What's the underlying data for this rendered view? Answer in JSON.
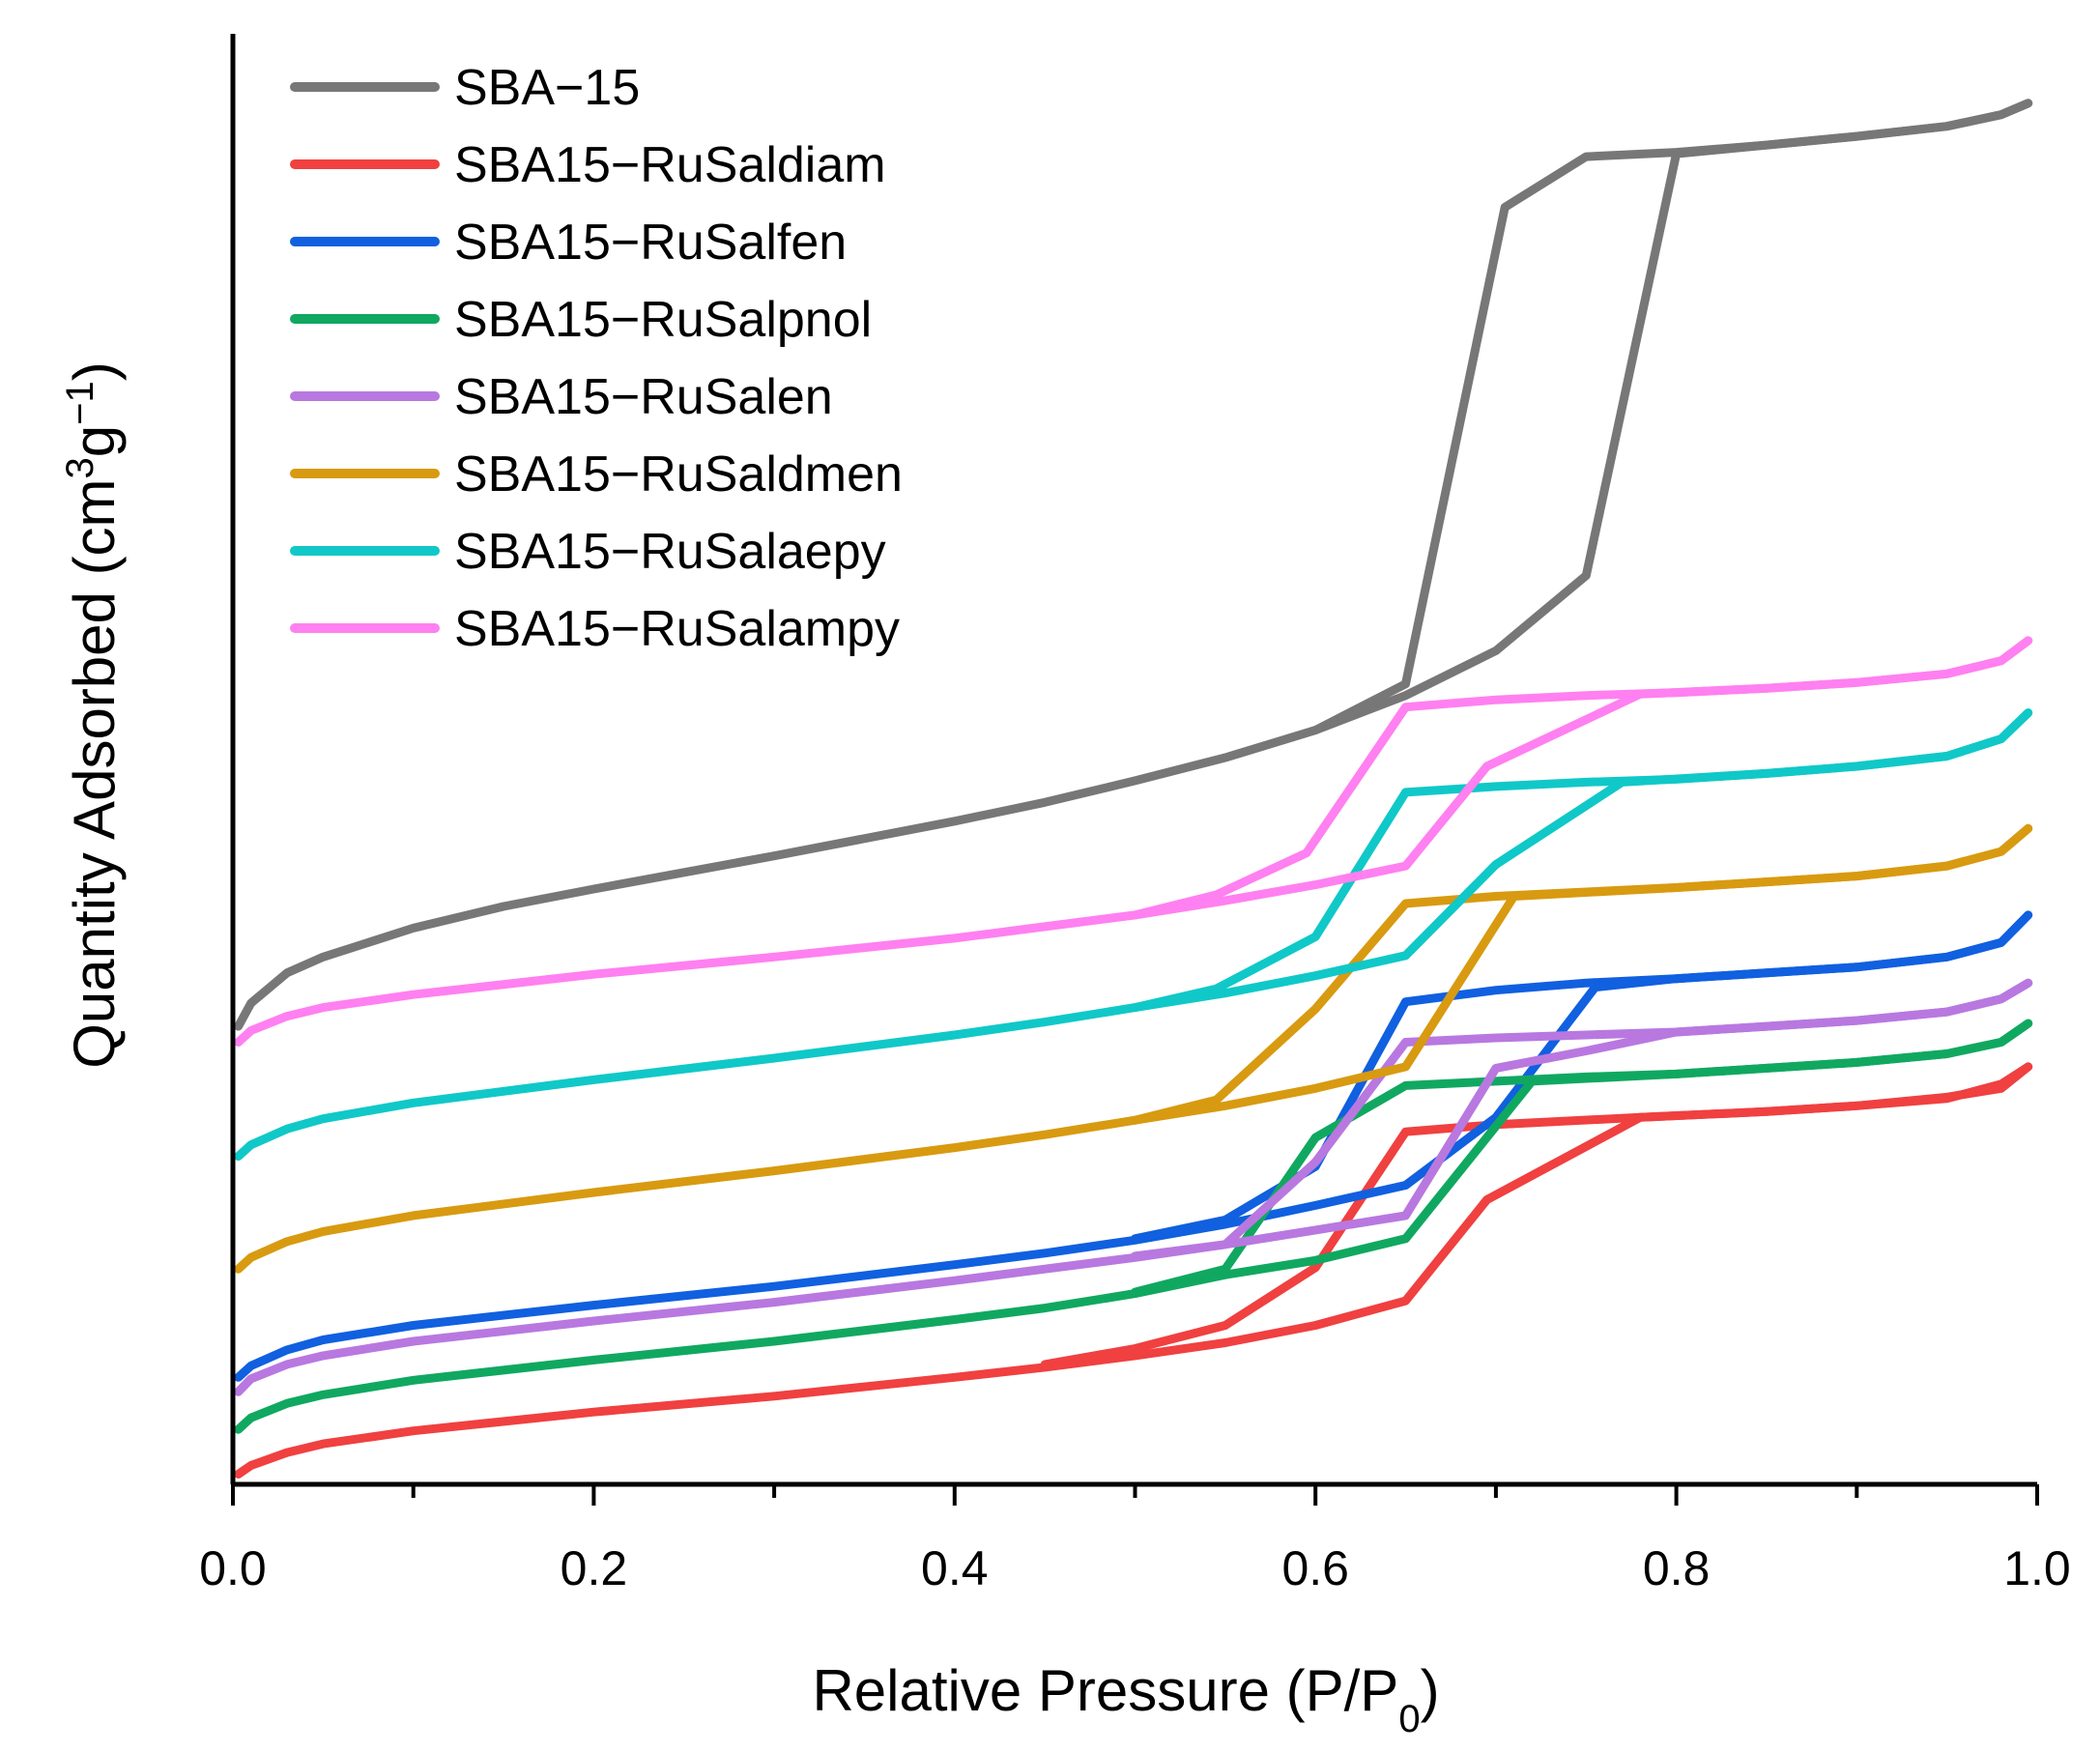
{
  "chart_data": {
    "type": "line",
    "title": "",
    "xlabel": "Relative Pressure (P/P",
    "xlabel_sub": "0",
    "xlabel_end": ")",
    "ylabel": "Quantity Adsorbed (cm",
    "ylabel_sup1": "3",
    "ylabel_mid": "g",
    "ylabel_sup2": "−1",
    "ylabel_end": ")",
    "xlim": [
      0.0,
      1.0
    ],
    "ylim": [
      0,
      100
    ],
    "y_ticks_shown": false,
    "x_ticks": [
      {
        "value": 0.0,
        "label": "0.0"
      },
      {
        "value": 0.2,
        "label": "0.2"
      },
      {
        "value": 0.4,
        "label": "0.4"
      },
      {
        "value": 0.6,
        "label": "0.6"
      },
      {
        "value": 0.8,
        "label": "0.8"
      },
      {
        "value": 1.0,
        "label": "1.0"
      }
    ],
    "x_minor_ticks": [
      0.1,
      0.3,
      0.5,
      0.7,
      0.9
    ],
    "legend_position": "top-left",
    "series": [
      {
        "name": "SBA−15",
        "color": "#777777",
        "adsorption": [
          [
            0.003,
            31.3
          ],
          [
            0.01,
            32.9
          ],
          [
            0.03,
            35.0
          ],
          [
            0.05,
            36.1
          ],
          [
            0.1,
            38.1
          ],
          [
            0.15,
            39.6
          ],
          [
            0.2,
            40.8
          ],
          [
            0.3,
            43.1
          ],
          [
            0.4,
            45.5
          ],
          [
            0.45,
            46.8
          ],
          [
            0.5,
            48.3
          ],
          [
            0.55,
            49.9
          ],
          [
            0.6,
            51.8
          ],
          [
            0.65,
            54.2
          ],
          [
            0.7,
            57.3
          ],
          [
            0.75,
            62.5
          ],
          [
            0.8,
            91.7
          ],
          [
            0.85,
            92.3
          ],
          [
            0.9,
            92.9
          ],
          [
            0.95,
            93.6
          ],
          [
            0.98,
            94.4
          ],
          [
            0.995,
            95.2
          ]
        ],
        "desorption": [
          [
            0.995,
            95.2
          ],
          [
            0.98,
            94.4
          ],
          [
            0.95,
            93.6
          ],
          [
            0.9,
            92.9
          ],
          [
            0.85,
            92.3
          ],
          [
            0.8,
            91.8
          ],
          [
            0.75,
            91.5
          ],
          [
            0.705,
            88.0
          ],
          [
            0.65,
            55.0
          ],
          [
            0.6,
            51.8
          ]
        ]
      },
      {
        "name": "SBA15−RuSaldiam",
        "color": "#f04040",
        "adsorption": [
          [
            0.003,
            0.3
          ],
          [
            0.01,
            0.9
          ],
          [
            0.03,
            1.8
          ],
          [
            0.05,
            2.4
          ],
          [
            0.1,
            3.3
          ],
          [
            0.2,
            4.6
          ],
          [
            0.3,
            5.7
          ],
          [
            0.4,
            7.0
          ],
          [
            0.45,
            7.7
          ],
          [
            0.5,
            8.5
          ],
          [
            0.55,
            9.4
          ],
          [
            0.6,
            10.6
          ],
          [
            0.65,
            12.3
          ],
          [
            0.695,
            19.3
          ],
          [
            0.78,
            25.0
          ],
          [
            0.85,
            25.4
          ],
          [
            0.9,
            25.8
          ],
          [
            0.95,
            26.4
          ],
          [
            0.98,
            27.0
          ],
          [
            0.995,
            28.5
          ]
        ],
        "desorption": [
          [
            0.995,
            28.5
          ],
          [
            0.98,
            27.3
          ],
          [
            0.95,
            26.3
          ],
          [
            0.9,
            25.8
          ],
          [
            0.85,
            25.4
          ],
          [
            0.78,
            25.0
          ],
          [
            0.7,
            24.5
          ],
          [
            0.65,
            24.0
          ],
          [
            0.6,
            14.6
          ],
          [
            0.55,
            10.6
          ],
          [
            0.5,
            9.0
          ],
          [
            0.45,
            7.9
          ]
        ]
      },
      {
        "name": "SBA15−RuSalfen",
        "color": "#1060e0",
        "adsorption": [
          [
            0.003,
            7.0
          ],
          [
            0.01,
            7.8
          ],
          [
            0.03,
            8.9
          ],
          [
            0.05,
            9.6
          ],
          [
            0.1,
            10.6
          ],
          [
            0.2,
            12.0
          ],
          [
            0.3,
            13.3
          ],
          [
            0.4,
            14.8
          ],
          [
            0.45,
            15.6
          ],
          [
            0.5,
            16.5
          ],
          [
            0.55,
            17.6
          ],
          [
            0.6,
            18.9
          ],
          [
            0.65,
            20.3
          ],
          [
            0.7,
            25.0
          ],
          [
            0.755,
            34.0
          ],
          [
            0.8,
            34.6
          ],
          [
            0.85,
            35.0
          ],
          [
            0.9,
            35.4
          ],
          [
            0.95,
            36.1
          ],
          [
            0.98,
            37.1
          ],
          [
            0.995,
            39.0
          ]
        ],
        "desorption": [
          [
            0.995,
            39.0
          ],
          [
            0.98,
            37.1
          ],
          [
            0.95,
            36.1
          ],
          [
            0.9,
            35.4
          ],
          [
            0.85,
            35.0
          ],
          [
            0.8,
            34.6
          ],
          [
            0.75,
            34.3
          ],
          [
            0.7,
            33.8
          ],
          [
            0.65,
            33.0
          ],
          [
            0.6,
            21.6
          ],
          [
            0.55,
            17.9
          ],
          [
            0.5,
            16.6
          ]
        ]
      },
      {
        "name": "SBA15−RuSalpnol",
        "color": "#10a860",
        "adsorption": [
          [
            0.003,
            3.4
          ],
          [
            0.01,
            4.2
          ],
          [
            0.03,
            5.2
          ],
          [
            0.05,
            5.8
          ],
          [
            0.1,
            6.8
          ],
          [
            0.2,
            8.2
          ],
          [
            0.3,
            9.5
          ],
          [
            0.4,
            11.0
          ],
          [
            0.45,
            11.8
          ],
          [
            0.5,
            12.8
          ],
          [
            0.55,
            14.1
          ],
          [
            0.6,
            15.1
          ],
          [
            0.65,
            16.6
          ],
          [
            0.72,
            27.5
          ],
          [
            0.8,
            28.0
          ],
          [
            0.85,
            28.4
          ],
          [
            0.9,
            28.8
          ],
          [
            0.95,
            29.4
          ],
          [
            0.98,
            30.2
          ],
          [
            0.995,
            31.5
          ]
        ],
        "desorption": [
          [
            0.995,
            31.5
          ],
          [
            0.98,
            30.2
          ],
          [
            0.95,
            29.4
          ],
          [
            0.9,
            28.8
          ],
          [
            0.85,
            28.4
          ],
          [
            0.8,
            28.0
          ],
          [
            0.75,
            27.8
          ],
          [
            0.7,
            27.5
          ],
          [
            0.65,
            27.2
          ],
          [
            0.6,
            23.6
          ],
          [
            0.55,
            14.5
          ],
          [
            0.5,
            12.9
          ]
        ]
      },
      {
        "name": "SBA15−RuSalen",
        "color": "#b878e0",
        "adsorption": [
          [
            0.003,
            6.0
          ],
          [
            0.01,
            6.9
          ],
          [
            0.03,
            7.9
          ],
          [
            0.05,
            8.5
          ],
          [
            0.1,
            9.5
          ],
          [
            0.2,
            10.9
          ],
          [
            0.3,
            12.2
          ],
          [
            0.4,
            13.7
          ],
          [
            0.45,
            14.5
          ],
          [
            0.5,
            15.3
          ],
          [
            0.55,
            16.2
          ],
          [
            0.6,
            17.2
          ],
          [
            0.65,
            18.2
          ],
          [
            0.7,
            28.4
          ],
          [
            0.75,
            29.6
          ],
          [
            0.8,
            30.9
          ],
          [
            0.85,
            31.3
          ],
          [
            0.9,
            31.7
          ],
          [
            0.95,
            32.3
          ],
          [
            0.98,
            33.2
          ],
          [
            0.995,
            34.3
          ]
        ],
        "desorption": [
          [
            0.995,
            34.3
          ],
          [
            0.98,
            33.2
          ],
          [
            0.95,
            32.3
          ],
          [
            0.9,
            31.7
          ],
          [
            0.85,
            31.3
          ],
          [
            0.8,
            30.9
          ],
          [
            0.75,
            30.7
          ],
          [
            0.7,
            30.5
          ],
          [
            0.65,
            30.2
          ],
          [
            0.6,
            21.9
          ],
          [
            0.55,
            16.2
          ],
          [
            0.5,
            15.4
          ]
        ]
      },
      {
        "name": "SBA15−RuSaldmen",
        "color": "#d89a10",
        "adsorption": [
          [
            0.003,
            14.5
          ],
          [
            0.01,
            15.3
          ],
          [
            0.03,
            16.4
          ],
          [
            0.05,
            17.1
          ],
          [
            0.1,
            18.2
          ],
          [
            0.2,
            19.8
          ],
          [
            0.3,
            21.3
          ],
          [
            0.4,
            22.9
          ],
          [
            0.45,
            23.8
          ],
          [
            0.5,
            24.8
          ],
          [
            0.55,
            25.8
          ],
          [
            0.6,
            27.0
          ],
          [
            0.65,
            28.5
          ],
          [
            0.71,
            40.3
          ],
          [
            0.8,
            40.9
          ],
          [
            0.85,
            41.3
          ],
          [
            0.9,
            41.7
          ],
          [
            0.95,
            42.4
          ],
          [
            0.98,
            43.4
          ],
          [
            0.995,
            45.0
          ]
        ],
        "desorption": [
          [
            0.995,
            45.0
          ],
          [
            0.98,
            43.4
          ],
          [
            0.95,
            42.4
          ],
          [
            0.9,
            41.7
          ],
          [
            0.85,
            41.3
          ],
          [
            0.8,
            40.9
          ],
          [
            0.75,
            40.6
          ],
          [
            0.7,
            40.3
          ],
          [
            0.65,
            39.8
          ],
          [
            0.6,
            32.5
          ],
          [
            0.545,
            26.2
          ],
          [
            0.5,
            24.8
          ]
        ]
      },
      {
        "name": "SBA15−RuSalaepy",
        "color": "#10c8c8",
        "adsorption": [
          [
            0.003,
            22.3
          ],
          [
            0.01,
            23.1
          ],
          [
            0.03,
            24.2
          ],
          [
            0.05,
            24.9
          ],
          [
            0.1,
            26.0
          ],
          [
            0.2,
            27.6
          ],
          [
            0.3,
            29.1
          ],
          [
            0.4,
            30.7
          ],
          [
            0.45,
            31.6
          ],
          [
            0.5,
            32.6
          ],
          [
            0.55,
            33.6
          ],
          [
            0.6,
            34.8
          ],
          [
            0.65,
            36.2
          ],
          [
            0.7,
            42.5
          ],
          [
            0.77,
            48.2
          ],
          [
            0.85,
            48.8
          ],
          [
            0.9,
            49.3
          ],
          [
            0.95,
            50.0
          ],
          [
            0.98,
            51.2
          ],
          [
            0.995,
            53.0
          ]
        ],
        "desorption": [
          [
            0.995,
            53.0
          ],
          [
            0.98,
            51.2
          ],
          [
            0.95,
            50.0
          ],
          [
            0.9,
            49.3
          ],
          [
            0.85,
            48.8
          ],
          [
            0.8,
            48.4
          ],
          [
            0.75,
            48.2
          ],
          [
            0.7,
            47.9
          ],
          [
            0.65,
            47.5
          ],
          [
            0.6,
            37.5
          ],
          [
            0.545,
            33.9
          ],
          [
            0.5,
            32.6
          ]
        ]
      },
      {
        "name": "SBA15−RuSalampy",
        "color": "#ff80f0",
        "adsorption": [
          [
            0.003,
            30.2
          ],
          [
            0.01,
            31.0
          ],
          [
            0.03,
            32.0
          ],
          [
            0.05,
            32.6
          ],
          [
            0.1,
            33.5
          ],
          [
            0.2,
            34.9
          ],
          [
            0.3,
            36.1
          ],
          [
            0.4,
            37.4
          ],
          [
            0.45,
            38.2
          ],
          [
            0.5,
            39.0
          ],
          [
            0.55,
            40.0
          ],
          [
            0.6,
            41.1
          ],
          [
            0.65,
            42.4
          ],
          [
            0.695,
            49.3
          ],
          [
            0.78,
            54.3
          ],
          [
            0.85,
            54.7
          ],
          [
            0.9,
            55.1
          ],
          [
            0.95,
            55.7
          ],
          [
            0.98,
            56.6
          ],
          [
            0.995,
            58.0
          ]
        ],
        "desorption": [
          [
            0.995,
            58.0
          ],
          [
            0.98,
            56.6
          ],
          [
            0.95,
            55.7
          ],
          [
            0.9,
            55.1
          ],
          [
            0.85,
            54.7
          ],
          [
            0.8,
            54.4
          ],
          [
            0.75,
            54.2
          ],
          [
            0.7,
            53.9
          ],
          [
            0.65,
            53.4
          ],
          [
            0.595,
            43.3
          ],
          [
            0.545,
            40.4
          ],
          [
            0.5,
            39.0
          ]
        ]
      }
    ]
  }
}
